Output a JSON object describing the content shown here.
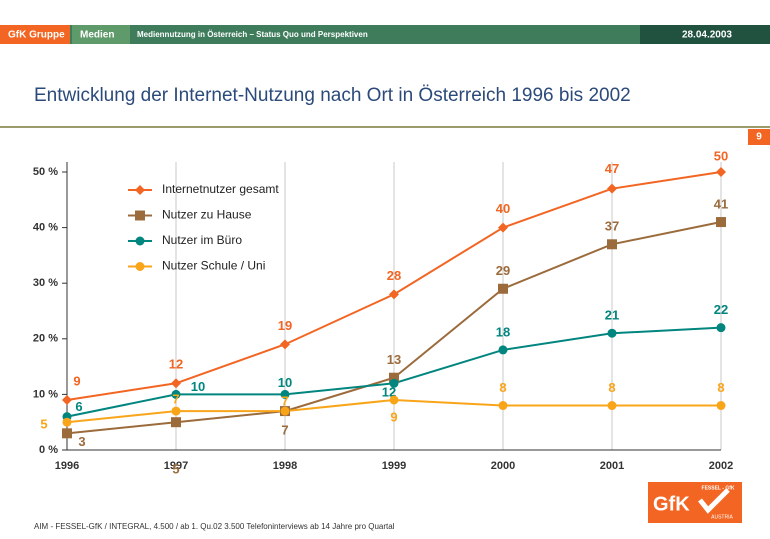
{
  "header": {
    "company": "GfK Gruppe",
    "section": "Medien",
    "subject": "Mediennutzung in Österreich – Status Quo und Perspektiven",
    "date": "28.04.2003"
  },
  "title": "Entwicklung der Internet-Nutzung nach Ort in Österreich 1996 bis 2002",
  "page_number": "9",
  "chart_data": {
    "type": "line",
    "categories": [
      "1996",
      "1997",
      "1998",
      "1999",
      "2000",
      "2001",
      "2002"
    ],
    "series": [
      {
        "name": "Internetnutzer gesamt",
        "color": "#f26522",
        "marker": "diamond",
        "values": [
          9,
          12,
          19,
          28,
          40,
          47,
          50
        ]
      },
      {
        "name": "Nutzer zu Hause",
        "color": "#9c6b3c",
        "marker": "square",
        "values": [
          3,
          5,
          7,
          13,
          29,
          37,
          41
        ]
      },
      {
        "name": "Nutzer im Büro",
        "color": "#00857f",
        "marker": "circle",
        "values": [
          6,
          10,
          10,
          12,
          18,
          21,
          22
        ]
      },
      {
        "name": "Nutzer Schule / Uni",
        "color": "#f9a51a",
        "marker": "circle",
        "values": [
          5,
          7,
          7,
          9,
          8,
          8,
          8
        ]
      }
    ],
    "ylim": [
      0,
      50
    ],
    "yticks": [
      {
        "value": 0,
        "label": "0 %"
      },
      {
        "value": 10,
        "label": "10 %"
      },
      {
        "value": 20,
        "label": "20 %"
      },
      {
        "value": 30,
        "label": "30 %"
      },
      {
        "value": 40,
        "label": "40 %"
      },
      {
        "value": 50,
        "label": "50 %"
      }
    ],
    "grid": "x",
    "legend": "upper left"
  },
  "footer": "AIM - FESSEL-GfK / INTEGRAL, 4.500 / ab 1. Qu.02 3.500 Telefoninterviews ab 14 Jahre pro Quartal",
  "logo": {
    "main": "GfK",
    "top": "FESSEL - GfK",
    "bottom": "AUSTRIA"
  }
}
